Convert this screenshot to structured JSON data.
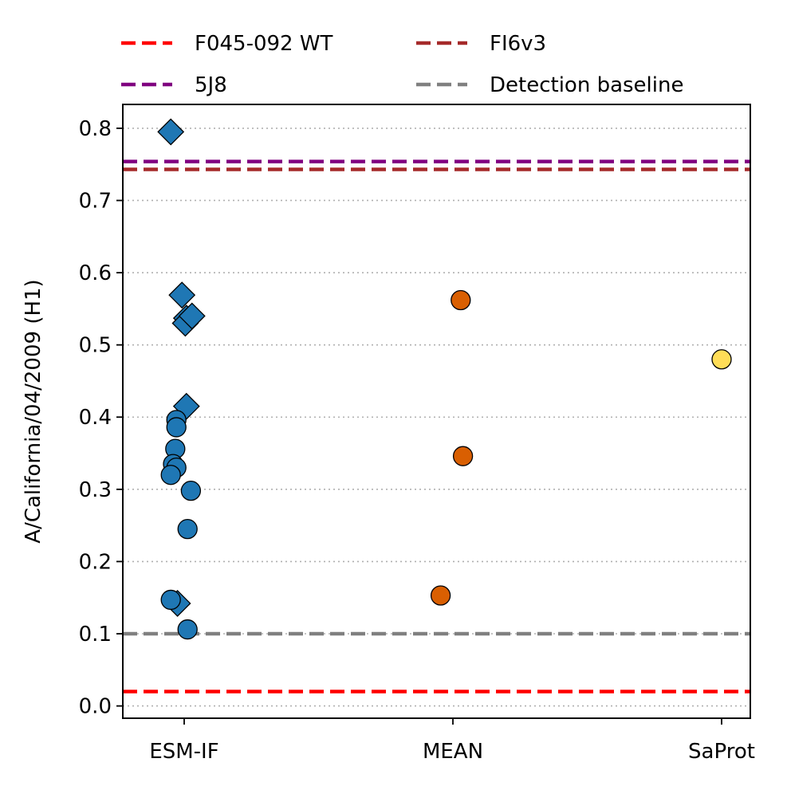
{
  "chart_data": {
    "type": "scatter",
    "ylabel": "A/California/04/2009 (H1)",
    "xlabel": "",
    "categories": [
      "ESM-IF",
      "MEAN",
      "SaProt"
    ],
    "ylim": [
      -0.017,
      0.833
    ],
    "yticks": [
      0.0,
      0.1,
      0.2,
      0.3,
      0.4,
      0.5,
      0.6,
      0.7,
      0.8
    ],
    "ytick_labels": [
      "0.0",
      "0.1",
      "0.2",
      "0.3",
      "0.4",
      "0.5",
      "0.6",
      "0.7",
      "0.8"
    ],
    "grid": "y-dotted",
    "legend_position": "top",
    "reference_lines": [
      {
        "name": "F045-092 WT",
        "y": 0.02,
        "color": "#ff0000",
        "style": "dashed"
      },
      {
        "name": "FI6v3",
        "y": 0.743,
        "color": "#a52a2a",
        "style": "dashed"
      },
      {
        "name": "5J8",
        "y": 0.754,
        "color": "#800080",
        "style": "dashed"
      },
      {
        "name": "Detection baseline",
        "y": 0.1,
        "color": "#808080",
        "style": "dashed"
      }
    ],
    "series": [
      {
        "name": "ESM-IF",
        "category": "ESM-IF",
        "color": "#1f77b4",
        "points": [
          {
            "x": -0.12,
            "y": 0.795,
            "marker": "diamond"
          },
          {
            "x": -0.02,
            "y": 0.569,
            "marker": "diamond"
          },
          {
            "x": 0.02,
            "y": 0.537,
            "marker": "diamond"
          },
          {
            "x": 0.01,
            "y": 0.53,
            "marker": "diamond"
          },
          {
            "x": 0.07,
            "y": 0.54,
            "marker": "diamond"
          },
          {
            "x": 0.02,
            "y": 0.415,
            "marker": "diamond"
          },
          {
            "x": -0.06,
            "y": 0.142,
            "marker": "diamond"
          },
          {
            "x": -0.07,
            "y": 0.396,
            "marker": "circle"
          },
          {
            "x": -0.07,
            "y": 0.386,
            "marker": "circle"
          },
          {
            "x": -0.08,
            "y": 0.356,
            "marker": "circle"
          },
          {
            "x": -0.1,
            "y": 0.335,
            "marker": "circle"
          },
          {
            "x": -0.07,
            "y": 0.33,
            "marker": "circle"
          },
          {
            "x": -0.12,
            "y": 0.32,
            "marker": "circle"
          },
          {
            "x": 0.06,
            "y": 0.298,
            "marker": "circle"
          },
          {
            "x": 0.03,
            "y": 0.245,
            "marker": "circle"
          },
          {
            "x": -0.12,
            "y": 0.147,
            "marker": "circle"
          },
          {
            "x": 0.03,
            "y": 0.106,
            "marker": "circle"
          }
        ]
      },
      {
        "name": "MEAN",
        "category": "MEAN",
        "color": "#d95f02",
        "points": [
          {
            "x": 0.07,
            "y": 0.562,
            "marker": "circle"
          },
          {
            "x": 0.09,
            "y": 0.346,
            "marker": "circle"
          },
          {
            "x": -0.11,
            "y": 0.153,
            "marker": "circle"
          }
        ]
      },
      {
        "name": "SaProt",
        "category": "SaProt",
        "color": "#ffdd57",
        "points": [
          {
            "x": 0.0,
            "y": 0.48,
            "marker": "circle"
          }
        ]
      }
    ]
  }
}
